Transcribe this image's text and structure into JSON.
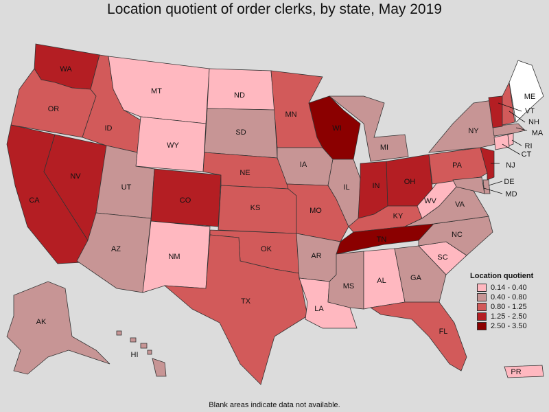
{
  "title": "Location quotient of order clerks, by state, May 2019",
  "footnote": "Blank areas indicate data not available.",
  "colors": {
    "c0": "#ffb8c0",
    "c1": "#c79595",
    "c2": "#d25a5a",
    "c3": "#b41e23",
    "c4": "#8b0000",
    "blank": "#ffffff"
  },
  "legend": {
    "title": "Location quotient",
    "items": [
      {
        "label": "0.14 - 0.40",
        "class": "c0"
      },
      {
        "label": "0.40 - 0.80",
        "class": "c1"
      },
      {
        "label": "0.80 - 1.25",
        "class": "c2"
      },
      {
        "label": "1.25 - 2.50",
        "class": "c3"
      },
      {
        "label": "2.50 - 3.50",
        "class": "c4"
      }
    ]
  },
  "chart_data": {
    "type": "choropleth",
    "title": "Location quotient of order clerks, by state, May 2019",
    "states": [
      {
        "abbr": "WA",
        "class": "c3"
      },
      {
        "abbr": "OR",
        "class": "c2"
      },
      {
        "abbr": "CA",
        "class": "c3"
      },
      {
        "abbr": "NV",
        "class": "c3"
      },
      {
        "abbr": "ID",
        "class": "c2"
      },
      {
        "abbr": "MT",
        "class": "c0"
      },
      {
        "abbr": "WY",
        "class": "c0"
      },
      {
        "abbr": "UT",
        "class": "c1"
      },
      {
        "abbr": "AZ",
        "class": "c1"
      },
      {
        "abbr": "CO",
        "class": "c3"
      },
      {
        "abbr": "NM",
        "class": "c0"
      },
      {
        "abbr": "ND",
        "class": "c0"
      },
      {
        "abbr": "SD",
        "class": "c1"
      },
      {
        "abbr": "NE",
        "class": "c2"
      },
      {
        "abbr": "KS",
        "class": "c2"
      },
      {
        "abbr": "OK",
        "class": "c2"
      },
      {
        "abbr": "TX",
        "class": "c2"
      },
      {
        "abbr": "MN",
        "class": "c2"
      },
      {
        "abbr": "IA",
        "class": "c1"
      },
      {
        "abbr": "MO",
        "class": "c2"
      },
      {
        "abbr": "AR",
        "class": "c1"
      },
      {
        "abbr": "LA",
        "class": "c0"
      },
      {
        "abbr": "WI",
        "class": "c4"
      },
      {
        "abbr": "IL",
        "class": "c1"
      },
      {
        "abbr": "MI",
        "class": "c1"
      },
      {
        "abbr": "IN",
        "class": "c3"
      },
      {
        "abbr": "OH",
        "class": "c3"
      },
      {
        "abbr": "KY",
        "class": "c2"
      },
      {
        "abbr": "TN",
        "class": "c4"
      },
      {
        "abbr": "MS",
        "class": "c1"
      },
      {
        "abbr": "AL",
        "class": "c0"
      },
      {
        "abbr": "GA",
        "class": "c1"
      },
      {
        "abbr": "FL",
        "class": "c2"
      },
      {
        "abbr": "SC",
        "class": "c0"
      },
      {
        "abbr": "NC",
        "class": "c1"
      },
      {
        "abbr": "VA",
        "class": "c1"
      },
      {
        "abbr": "WV",
        "class": "c0"
      },
      {
        "abbr": "PA",
        "class": "c2"
      },
      {
        "abbr": "NY",
        "class": "c1"
      },
      {
        "abbr": "NJ",
        "class": "c3"
      },
      {
        "abbr": "DE",
        "class": "c1"
      },
      {
        "abbr": "MD",
        "class": "c1"
      },
      {
        "abbr": "CT",
        "class": "c0"
      },
      {
        "abbr": "RI",
        "class": "c0"
      },
      {
        "abbr": "MA",
        "class": "c1"
      },
      {
        "abbr": "VT",
        "class": "c3"
      },
      {
        "abbr": "NH",
        "class": "c2"
      },
      {
        "abbr": "ME",
        "class": "blank"
      },
      {
        "abbr": "AK",
        "class": "c1"
      },
      {
        "abbr": "HI",
        "class": "c1"
      },
      {
        "abbr": "PR",
        "class": "c0"
      }
    ]
  }
}
